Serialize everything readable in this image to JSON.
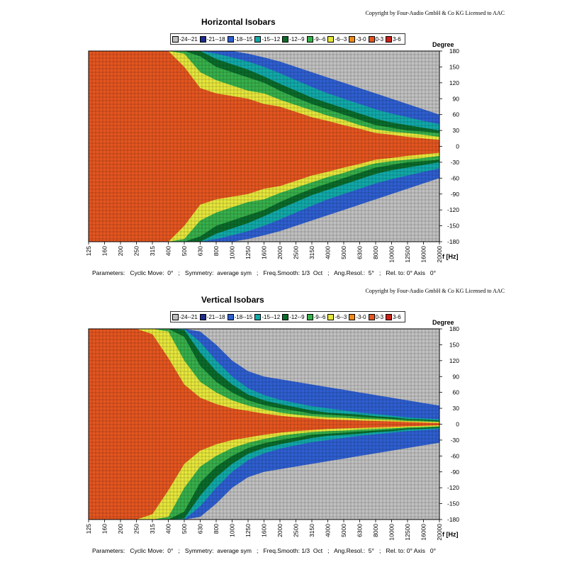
{
  "legend": [
    {
      "label": "-24--21",
      "color": "#c0c0c0"
    },
    {
      "label": "-21--18",
      "color": "#1e2c8c"
    },
    {
      "label": "-18--15",
      "color": "#2f5fd0"
    },
    {
      "label": "-15--12",
      "color": "#12a9a9"
    },
    {
      "label": "-12--9",
      "color": "#0b6b2b"
    },
    {
      "label": "-9--6",
      "color": "#37b04a"
    },
    {
      "label": "-6--3",
      "color": "#e6e63c"
    },
    {
      "label": "-3-0",
      "color": "#f08a1a"
    },
    {
      "label": "0-3",
      "color": "#e45520"
    },
    {
      "label": "3-6",
      "color": "#c8241a"
    }
  ],
  "copyright": "Copyright by Four-Audio GmbH & Co KG   Licensed to AAC",
  "degree_label": "Degree",
  "freq_unit": "f [Hz]",
  "params_text": "Parameters:   Cyclic Move:  0°   ;   Symmetry:  average sym   ;   Freq.Smooth: 1/3  Oct   ;   Ang.Resol.:  5°   ;   Rel. to: 0° Axis   0°",
  "chart_data": [
    {
      "type": "heatmap",
      "title": "Horizontal Isobars",
      "x_ticks": [
        "125",
        "160",
        "200",
        "250",
        "315",
        "400",
        "500",
        "630",
        "800",
        "1000",
        "1250",
        "1600",
        "2000",
        "2500",
        "3150",
        "4000",
        "5000",
        "6300",
        "8000",
        "10000",
        "12500",
        "16000",
        "20000"
      ],
      "y_ticks": [
        180,
        150,
        120,
        90,
        60,
        30,
        0,
        -30,
        -60,
        -90,
        -120,
        -150,
        -180
      ],
      "contours_deg": {
        "freq_hz": [
          125,
          160,
          200,
          250,
          315,
          400,
          500,
          630,
          800,
          1000,
          1250,
          1600,
          2000,
          2500,
          3150,
          4000,
          5000,
          6300,
          8000,
          10000,
          12500,
          16000,
          20000
        ],
        "minus3_0": [
          180,
          180,
          180,
          180,
          180,
          180,
          150,
          110,
          100,
          95,
          90,
          80,
          75,
          65,
          55,
          48,
          40,
          33,
          25,
          22,
          18,
          15,
          12
        ],
        "minus6_3": [
          180,
          180,
          180,
          180,
          180,
          180,
          175,
          140,
          125,
          115,
          105,
          100,
          88,
          78,
          68,
          58,
          50,
          40,
          32,
          28,
          25,
          22,
          18
        ],
        "minus9_6": [
          180,
          180,
          180,
          180,
          180,
          180,
          180,
          170,
          150,
          140,
          130,
          120,
          105,
          92,
          80,
          70,
          60,
          50,
          40,
          35,
          30,
          28,
          25
        ],
        "minus12_9": [
          180,
          180,
          180,
          180,
          180,
          180,
          180,
          180,
          165,
          155,
          145,
          132,
          118,
          105,
          92,
          82,
          72,
          62,
          52,
          45,
          40,
          35,
          30
        ],
        "minus15_12": [
          180,
          180,
          180,
          180,
          180,
          180,
          180,
          180,
          175,
          168,
          160,
          150,
          138,
          125,
          112,
          100,
          90,
          80,
          70,
          62,
          55,
          48,
          42
        ],
        "minus21_18": [
          180,
          180,
          180,
          180,
          180,
          180,
          180,
          180,
          180,
          180,
          175,
          168,
          160,
          150,
          140,
          130,
          120,
          110,
          100,
          90,
          80,
          70,
          60
        ]
      }
    },
    {
      "type": "heatmap",
      "title": "Vertical Isobars",
      "x_ticks": [
        "125",
        "160",
        "200",
        "250",
        "315",
        "400",
        "500",
        "630",
        "800",
        "1000",
        "1250",
        "1600",
        "2000",
        "2500",
        "3150",
        "4000",
        "5000",
        "6300",
        "8000",
        "10000",
        "12500",
        "16000",
        "20000"
      ],
      "y_ticks": [
        180,
        150,
        120,
        90,
        60,
        30,
        0,
        -30,
        -60,
        -90,
        -120,
        -150,
        -180
      ],
      "contours_deg": {
        "freq_hz": [
          125,
          160,
          200,
          250,
          315,
          400,
          500,
          630,
          800,
          1000,
          1250,
          1600,
          2000,
          2500,
          3150,
          4000,
          5000,
          6300,
          8000,
          10000,
          12500,
          16000,
          20000
        ],
        "minus3_0": [
          180,
          180,
          180,
          180,
          170,
          125,
          75,
          50,
          38,
          30,
          25,
          20,
          16,
          13,
          11,
          9,
          8,
          7,
          6,
          5,
          4,
          3,
          2
        ],
        "minus6_3": [
          180,
          180,
          180,
          180,
          180,
          175,
          120,
          80,
          60,
          45,
          35,
          28,
          22,
          18,
          15,
          13,
          12,
          10,
          9,
          8,
          6,
          5,
          4
        ],
        "minus9_6": [
          180,
          180,
          180,
          180,
          180,
          180,
          165,
          110,
          80,
          60,
          45,
          36,
          30,
          25,
          20,
          18,
          16,
          14,
          12,
          10,
          8,
          7,
          5
        ],
        "minus12_9": [
          180,
          180,
          180,
          180,
          180,
          180,
          178,
          135,
          100,
          75,
          56,
          45,
          38,
          32,
          26,
          22,
          20,
          18,
          15,
          13,
          10,
          9,
          7
        ],
        "minus15_12": [
          180,
          180,
          180,
          180,
          180,
          180,
          180,
          155,
          120,
          90,
          68,
          55,
          46,
          40,
          34,
          30,
          26,
          22,
          19,
          16,
          13,
          11,
          9
        ],
        "minus21_18": [
          180,
          180,
          180,
          180,
          180,
          180,
          180,
          175,
          150,
          120,
          100,
          90,
          85,
          80,
          75,
          70,
          65,
          60,
          55,
          50,
          45,
          40,
          35
        ]
      }
    }
  ]
}
